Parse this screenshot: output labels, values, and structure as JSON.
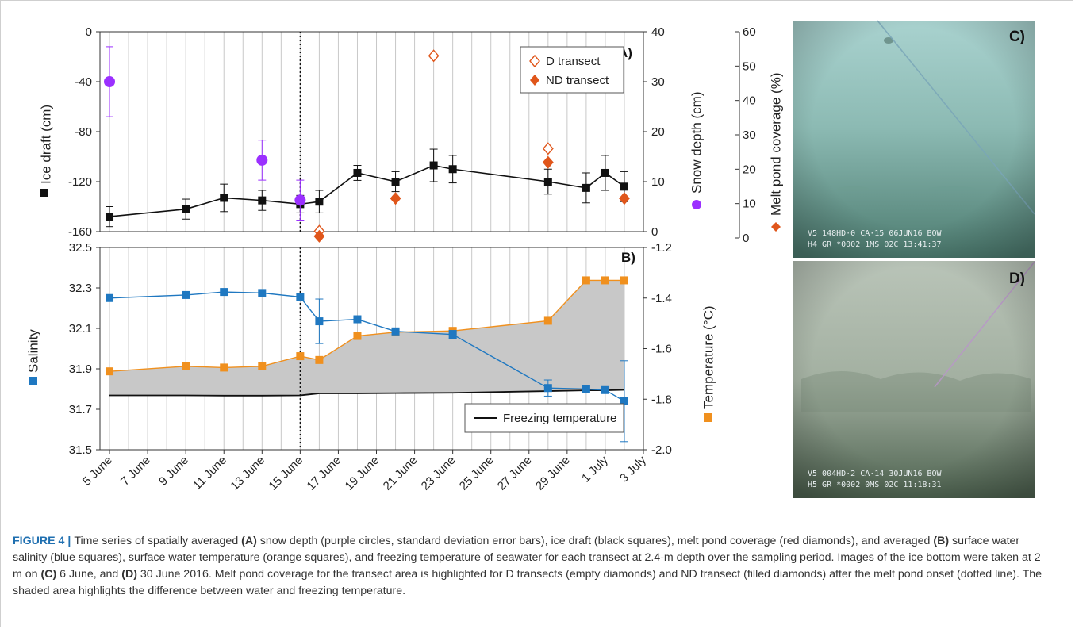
{
  "figure": {
    "number_label": "FIGURE 4 |",
    "caption_parts": [
      {
        "t": "Time series of spatially averaged ",
        "b": false
      },
      {
        "t": "(A)",
        "b": true
      },
      {
        "t": " snow depth (purple circles, standard deviation error bars), ice draft (black squares), melt pond coverage (red diamonds), and averaged ",
        "b": false
      },
      {
        "t": "(B)",
        "b": true
      },
      {
        "t": " surface water salinity (blue squares), surface water temperature (orange squares), and freezing temperature of seawater for each transect at 2.4-m depth over the sampling period. Images of the ice bottom were taken at 2 m on ",
        "b": false
      },
      {
        "t": "(C)",
        "b": true
      },
      {
        "t": " 6 June, and ",
        "b": false
      },
      {
        "t": "(D)",
        "b": true
      },
      {
        "t": " 30 June 2016. Melt pond coverage for the transect area is highlighted for D transects (empty diamonds) and ND transect (filled diamonds) after the melt pond onset (dotted line). The shaded area highlights the difference between water and freezing temperature.",
        "b": false
      }
    ]
  },
  "colors": {
    "purple": "#9b30ff",
    "black": "#111111",
    "red": "#e0561b",
    "blue": "#1f78c1",
    "orange": "#f0901e",
    "shade": "#c8c8c8",
    "grid": "#c8c8c8"
  },
  "chart_data": [
    {
      "type": "scatter",
      "panel_label": "A)",
      "x_unit": "June day (July 1 = 31)",
      "x_ticks": [
        "5 June",
        "7 June",
        "9 June",
        "11 June",
        "13 June",
        "15 June",
        "17 June",
        "19 June",
        "21 June",
        "23 June",
        "25 June",
        "27 June",
        "29 June",
        "1 July",
        "3 July"
      ],
      "x_tick_values": [
        5,
        7,
        9,
        11,
        13,
        15,
        17,
        19,
        21,
        23,
        25,
        27,
        29,
        31,
        33
      ],
      "xlim": [
        4.5,
        33
      ],
      "melt_pond_onset_x": 15,
      "left_axis": {
        "label": "Ice draft (cm)",
        "ylim": [
          -160,
          0
        ],
        "ticks": [
          "0",
          "-40",
          "-80",
          "-120",
          "-160"
        ],
        "tick_values": [
          0,
          -40,
          -80,
          -120,
          -160
        ]
      },
      "right_axis_1": {
        "label": "Snow depth (cm)",
        "ylim": [
          0,
          40
        ],
        "ticks": [
          "0",
          "10",
          "20",
          "30",
          "40"
        ],
        "tick_values": [
          0,
          10,
          20,
          30,
          40
        ]
      },
      "right_axis_2": {
        "label": "Melt pond coverage (%)",
        "ylim": [
          0,
          60
        ],
        "ticks": [
          "0",
          "10",
          "20",
          "30",
          "40",
          "50",
          "60"
        ],
        "tick_values": [
          0,
          10,
          20,
          30,
          40,
          50,
          60
        ]
      },
      "legend": {
        "position": "top-right",
        "entries": [
          "D transect",
          "ND transect"
        ]
      },
      "series": [
        {
          "name": "Ice draft",
          "style": "black-square-line",
          "axis": "left",
          "x": [
            5,
            9,
            11,
            13,
            15,
            16,
            18,
            20,
            22,
            23,
            28,
            30,
            31,
            32
          ],
          "y": [
            -148,
            -142,
            -133,
            -135,
            -138,
            -136,
            -113,
            -120,
            -107,
            -110,
            -120,
            -125,
            -113,
            -124
          ],
          "err": [
            8,
            8,
            11,
            8,
            7,
            9,
            6,
            8,
            13,
            11,
            10,
            12,
            14,
            12
          ]
        },
        {
          "name": "Snow depth",
          "style": "purple-circle",
          "axis": "right_1",
          "x": [
            5,
            13,
            15
          ],
          "y": [
            30,
            14.3,
            6.3
          ],
          "err": [
            7,
            4,
            4
          ]
        },
        {
          "name": "D transect",
          "style": "open-diamond",
          "axis": "right_2",
          "x": [
            16,
            22,
            28
          ],
          "y": [
            2,
            53,
            26
          ]
        },
        {
          "name": "ND transect",
          "style": "filled-diamond",
          "axis": "right_2",
          "x": [
            16,
            20,
            28,
            32
          ],
          "y": [
            0.5,
            11.5,
            22,
            11.5
          ]
        }
      ]
    },
    {
      "type": "line",
      "panel_label": "B)",
      "x_ticks": [
        "5 June",
        "7 June",
        "9 June",
        "11 June",
        "13 June",
        "15 June",
        "17 June",
        "19 June",
        "21 June",
        "23 June",
        "25 June",
        "27 June",
        "29 June",
        "1 July",
        "3 July"
      ],
      "left_axis": {
        "label": "Salinity",
        "ylim": [
          31.5,
          32.5
        ],
        "ticks": [
          "32.5",
          "32.3",
          "32.1",
          "31.9",
          "31.7",
          "31.5"
        ],
        "tick_values": [
          32.5,
          32.3,
          32.1,
          31.9,
          31.7,
          31.5
        ]
      },
      "right_axis": {
        "label": "Temperature (°C)",
        "ylim": [
          -2.0,
          -1.2
        ],
        "ticks": [
          "-1.2",
          "-1.4",
          "-1.6",
          "-1.8",
          "-2.0"
        ],
        "tick_values": [
          -1.2,
          -1.4,
          -1.6,
          -1.8,
          -2.0
        ]
      },
      "legend": {
        "position": "bottom-right",
        "entries": [
          "Freezing temperature"
        ]
      },
      "series": [
        {
          "name": "Salinity",
          "style": "blue-square-line",
          "axis": "left",
          "x": [
            5,
            9,
            11,
            13,
            15,
            16,
            18,
            20,
            23,
            28,
            30,
            31,
            32
          ],
          "y": [
            32.25,
            32.265,
            32.28,
            32.275,
            32.255,
            32.135,
            32.145,
            32.085,
            32.07,
            31.805,
            31.8,
            31.795,
            31.74
          ],
          "err": [
            0,
            0,
            0,
            0,
            0,
            0.11,
            0,
            0,
            0.02,
            0.04,
            0,
            0,
            0.2
          ]
        },
        {
          "name": "Water temperature",
          "style": "orange-square-line",
          "axis": "right",
          "x": [
            5,
            9,
            11,
            13,
            15,
            16,
            18,
            20,
            23,
            28,
            30,
            31,
            32
          ],
          "y": [
            -1.69,
            -1.67,
            -1.675,
            -1.67,
            -1.63,
            -1.645,
            -1.55,
            -1.535,
            -1.53,
            -1.49,
            -1.33,
            -1.33,
            -1.33
          ],
          "err": [
            0,
            0,
            0,
            0,
            0,
            0,
            0,
            0,
            0.01,
            0,
            0,
            0,
            0
          ]
        },
        {
          "name": "Freezing temperature",
          "style": "black-line",
          "axis": "right",
          "x": [
            5,
            9,
            11,
            13,
            15,
            16,
            18,
            20,
            23,
            28,
            30,
            31,
            32
          ],
          "y": [
            -1.785,
            -1.785,
            -1.786,
            -1.786,
            -1.785,
            -1.777,
            -1.777,
            -1.776,
            -1.775,
            -1.768,
            -1.765,
            -1.765,
            -1.763
          ]
        }
      ]
    }
  ],
  "photos": [
    {
      "label": "C)",
      "osd_line1": "V5     148HD·0 CA·15 06JUN16 BOW",
      "osd_line2": "H4 GR *0002 1MS 02C 13:41:37"
    },
    {
      "label": "D)",
      "osd_line1": "V5     004HD·2 CA·14 30JUN16 BOW",
      "osd_line2": "H5 GR *0002 0MS 02C 11:18:31"
    }
  ]
}
